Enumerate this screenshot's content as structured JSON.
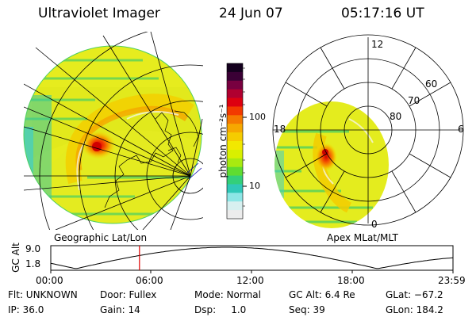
{
  "header": {
    "instrument": "Ultraviolet Imager",
    "date": "24 Jun 07",
    "time": "05:17:16 UT"
  },
  "left_panel": {
    "caption": "Geographic Lat/Lon"
  },
  "right_panel": {
    "caption": "Apex MLat/MLT",
    "mlt_labels": [
      "12",
      "6",
      "0",
      "18"
    ],
    "mlat_labels": [
      "60",
      "70",
      "80"
    ]
  },
  "colorbar": {
    "label": "photon cm⁻²s⁻¹",
    "ticks": [
      "100",
      "10"
    ],
    "colors": [
      "#14001e",
      "#3a0035",
      "#780040",
      "#b00030",
      "#dd0010",
      "#f23a00",
      "#f57a00",
      "#f6a800",
      "#f5cc00",
      "#f2e800",
      "#d9f000",
      "#a8ea10",
      "#5fdc30",
      "#33cf7a",
      "#30c8b8",
      "#8de6e6",
      "#d7f0f0",
      "#ececec"
    ]
  },
  "altitude_plot": {
    "ylabel": "GC Alt",
    "yticks": [
      "9.0",
      "1.8"
    ],
    "xticks": [
      "00:00",
      "06:00",
      "12:00",
      "18:00",
      "23:59"
    ],
    "marker_time_hours": 5.29
  },
  "info": {
    "row1": [
      "Flt: UNKNOWN",
      "Door: Fullex",
      "Mode: Normal",
      "GC Alt: 6.4 Re",
      "GLat: −67.2"
    ],
    "row2": [
      "IP: 36.0",
      "Gain: 14",
      "Dsp:     1.0",
      "Seq: 39",
      "GLon: 184.2"
    ]
  }
}
